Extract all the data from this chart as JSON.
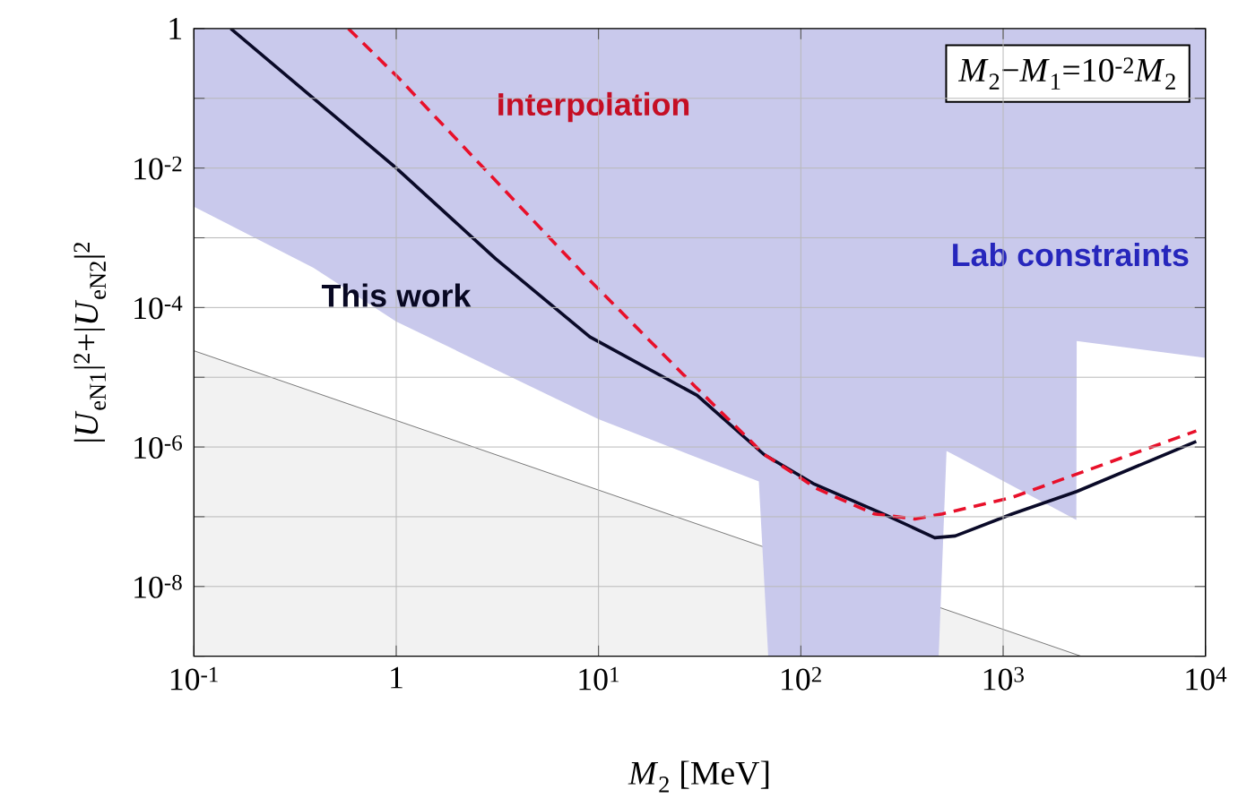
{
  "chart_data": {
    "type": "line",
    "log": "xy",
    "grid": true,
    "legend": false,
    "xlabel": "*M*$_{2}$ [MeV]",
    "ylabel": "|*U*$_{eN1}$|$^{2}$+|*U*$_{eN2}$|$^{2}$",
    "xlim": [
      0.1,
      10000
    ],
    "ylim": [
      1e-09,
      1
    ],
    "xticks": [
      {
        "value": 0.1,
        "label": "10$^{-1}$"
      },
      1,
      {
        "value": 10,
        "label": "10$^{1}$"
      },
      {
        "value": 100,
        "label": "10$^{2}$"
      },
      {
        "value": 1000,
        "label": "10$^{3}$"
      },
      {
        "value": 10000,
        "label": "10$^{4}$"
      }
    ],
    "yticks": [
      {
        "value": 1e-09,
        "label": null
      },
      {
        "value": 1e-08,
        "label": "10$^{-8}$"
      },
      {
        "value": 1e-07,
        "label": null
      },
      {
        "value": 1e-06,
        "label": "10$^{-6}$"
      },
      {
        "value": 1e-05,
        "label": null
      },
      {
        "value": 0.0001,
        "label": "10$^{-4}$"
      },
      {
        "value": 0.001,
        "label": null
      },
      {
        "value": 0.01,
        "label": "10$^{-2}$"
      },
      {
        "value": 0.1,
        "label": null
      },
      1
    ],
    "annotations": [
      "*M*$_{2}$−*M*$_{1}$=10$^{-2}$*M*$_{2}$"
    ],
    "series": [
      {
        "type": "area",
        "color": "#f2f2f2",
        "x": [
          0.1,
          2430
        ],
        "values": [
          2.4e-05,
          1e-09
        ]
      },
      {
        "type": "area",
        "name": "Lab constraints",
        "color": "#c9c9ec",
        "x": [
          0.1,
          0.1,
          0.39,
          1,
          10,
          62,
          69,
          480,
          525,
          2300,
          2310,
          10000,
          10000
        ],
        "values": [
          1,
          0.0028,
          0.00037,
          6.3e-05,
          2.5e-06,
          3.2e-07,
          1e-09,
          1e-09,
          8.8e-07,
          9e-08,
          3.3e-05,
          1.9e-05,
          1
        ]
      },
      {
        "name": "This work",
        "color": "#0a0a28",
        "line_style": "solid",
        "x": [
          0.152,
          1,
          3.1,
          9.06,
          30.7,
          65.8,
          115,
          265,
          459,
          580,
          1110,
          2310,
          9000
        ],
        "values": [
          1,
          0.01,
          0.0005,
          3.8e-05,
          5.5e-06,
          7.8e-07,
          3e-07,
          1.05e-07,
          5e-08,
          5.3e-08,
          1.1e-07,
          2.3e-07,
          1.2e-06
        ]
      },
      {
        "name": "Interpolation",
        "color": "#e8102a",
        "line_style": "dashed",
        "x": [
          0.58,
          1.02,
          9.0,
          30,
          66,
          121,
          230,
          366,
          502,
          1110,
          9000
        ],
        "values": [
          1,
          0.2,
          0.00025,
          7.4e-06,
          7.8e-07,
          2.5e-07,
          1.1e-07,
          9.3e-08,
          1.1e-07,
          1.9e-07,
          1.7e-06
        ]
      }
    ]
  }
}
